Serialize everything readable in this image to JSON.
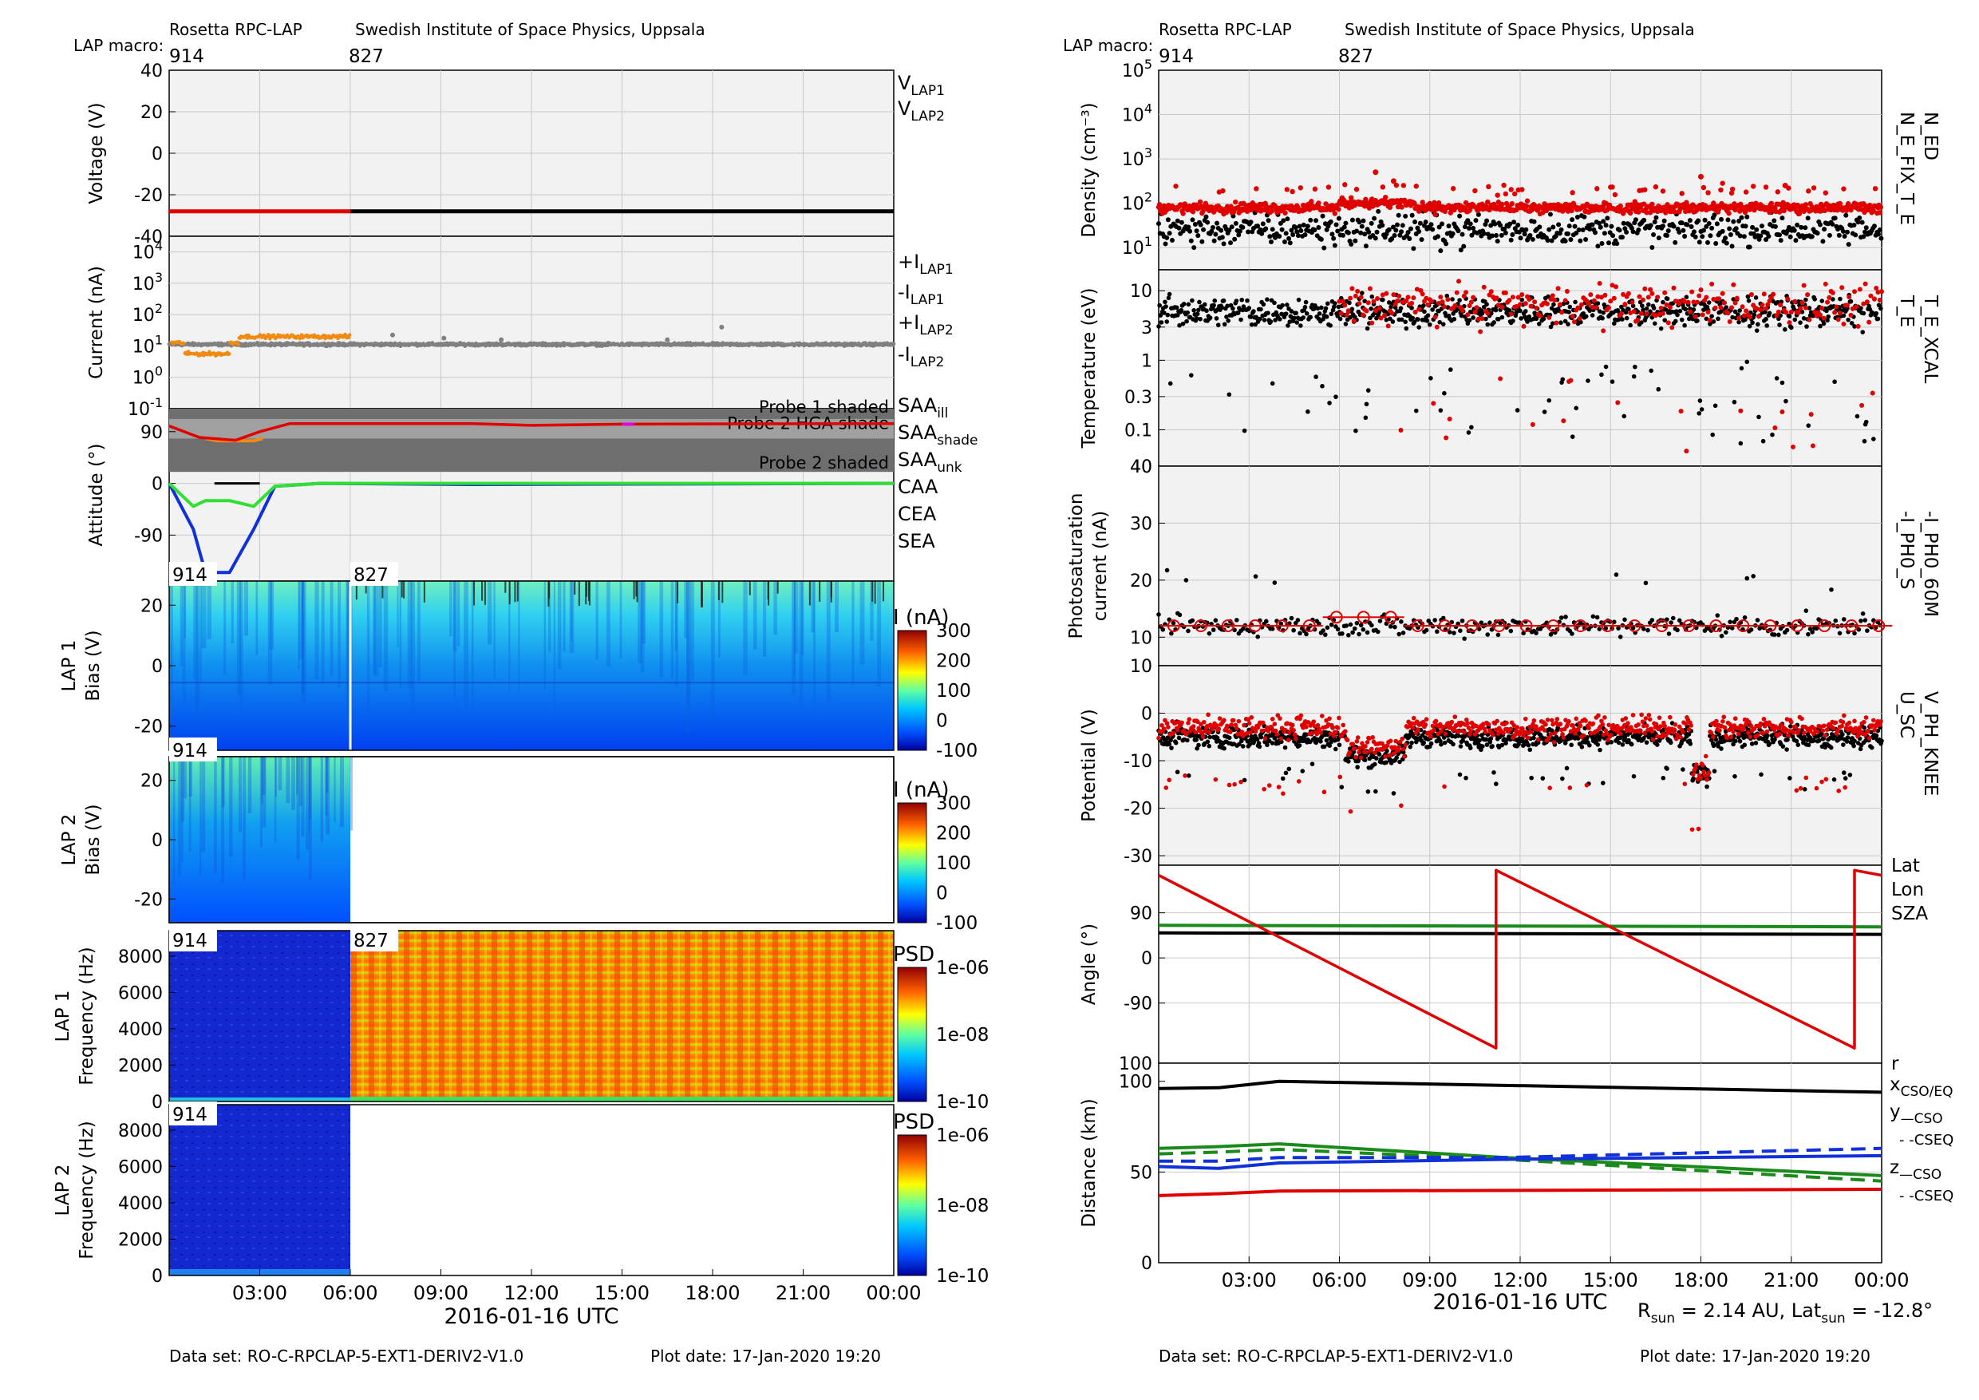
{
  "header_left": {
    "instrument": "Rosetta RPC-LAP",
    "institute": "Swedish Institute of Space Physics, Uppsala",
    "macro_label": "LAP macro:",
    "macro1": "914",
    "macro2": "827"
  },
  "header_right": {
    "instrument": "Rosetta RPC-LAP",
    "institute": "Swedish Institute of Space Physics, Uppsala",
    "macro_label": "LAP macro:",
    "macro1": "914",
    "macro2": "827"
  },
  "footer_left": {
    "dataset": "Data set: RO-C-RPCLAP-5-EXT1-DERIV2-V1.0",
    "plotdate": "Plot date: 17-Jan-2020 19:20"
  },
  "footer_right": {
    "dataset": "Data set: RO-C-RPCLAP-5-EXT1-DERIV2-V1.0",
    "plotdate": "Plot date: 17-Jan-2020 19:20",
    "rsun_note": "R_sun = 2.14 AU, Lat_sun = -12.8°"
  },
  "xaxis": {
    "label": "2016-01-16 UTC",
    "ticks": [
      "03:00",
      "06:00",
      "09:00",
      "12:00",
      "15:00",
      "18:00",
      "21:00",
      "00:00"
    ],
    "range_hours": [
      0,
      24
    ]
  },
  "colors": {
    "lap1": "#000000",
    "lap2": "#e00000",
    "gray": "#808080",
    "orange": "#f08a10",
    "green": "#1a8a1a",
    "blue": "#1030d8",
    "panel_bg": "#f2f2f2"
  },
  "chart_data": [
    {
      "type": "line",
      "panel": "voltage",
      "ylabel": "Voltage (V)",
      "yticks": [
        "40",
        "20",
        "0",
        "-20",
        "-40"
      ],
      "ylim": [
        -40,
        40
      ],
      "series": [
        {
          "name": "V_LAP1",
          "x": [
            6,
            24
          ],
          "y": [
            -28,
            -28
          ]
        },
        {
          "name": "V_LAP2",
          "x": [
            0,
            6
          ],
          "y": [
            -28,
            -28
          ]
        }
      ]
    },
    {
      "type": "scatter",
      "panel": "current",
      "ylabel": "Current (nA)",
      "yscale": "log",
      "yticks": [
        "10^4",
        "10^3",
        "10^2",
        "10^1",
        "10^0",
        "10^-1"
      ],
      "ylim": [
        0.1,
        30000
      ],
      "series": [
        {
          "name": "+I_LAP1",
          "approx": 12
        },
        {
          "name": "-I_LAP1",
          "approx": 11
        },
        {
          "name": "+I_LAP2",
          "approx": 14
        },
        {
          "name": "-I_LAP2",
          "approx": 6
        }
      ]
    },
    {
      "type": "line",
      "panel": "attitude",
      "ylabel": "Attitude (°)",
      "yticks": [
        "90",
        "0",
        "-90"
      ],
      "annotations": [
        "Probe 1 shaded",
        "Probe 2 HGA shade",
        "Probe 2 shaded"
      ],
      "legend": [
        "SAA_ill",
        "SAA_shade",
        "SAA_unk",
        "CAA",
        "CEA",
        "SEA"
      ],
      "series": [
        {
          "name": "SAA_ill",
          "x": [
            0,
            1,
            2.2,
            3,
            4,
            6,
            10,
            12,
            15,
            24
          ],
          "y": [
            100,
            80,
            75,
            90,
            104,
            104,
            104,
            101,
            103,
            104
          ]
        },
        {
          "name": "CAA",
          "x": [
            0,
            0.8,
            1.2,
            2,
            2.8,
            3.5,
            5,
            10,
            24
          ],
          "y": [
            0,
            -80,
            -155,
            -155,
            -80,
            -5,
            0,
            -2,
            0
          ]
        },
        {
          "name": "CEA",
          "x": [
            0,
            0.8,
            1.2,
            2,
            2.8,
            3.5,
            5,
            24
          ],
          "y": [
            0,
            -40,
            -30,
            -30,
            -40,
            -5,
            0,
            0
          ]
        }
      ]
    },
    {
      "type": "heatmap",
      "panel": "lap1_sweep",
      "ylabel": "LAP 1\nBias (V)",
      "yticks": [
        "20",
        "0",
        "-20"
      ],
      "colorbar_label": "I (nA)",
      "colorbar_ticks": [
        "300",
        "200",
        "100",
        "0",
        "-100"
      ],
      "macro_labels": [
        "914",
        "827"
      ]
    },
    {
      "type": "heatmap",
      "panel": "lap2_sweep",
      "ylabel": "LAP 2\nBias (V)",
      "yticks": [
        "20",
        "0",
        "-20"
      ],
      "colorbar_label": "I (nA)",
      "colorbar_ticks": [
        "300",
        "200",
        "100",
        "0",
        "-100"
      ],
      "macro_labels": [
        "914"
      ]
    },
    {
      "type": "heatmap",
      "panel": "lap1_psd",
      "ylabel": "LAP 1\nFrequency (Hz)",
      "yticks": [
        "8000",
        "6000",
        "4000",
        "2000",
        "0"
      ],
      "colorbar_label": "PSD",
      "colorbar_ticks": [
        "1e-06",
        "1e-08",
        "1e-10"
      ],
      "macro_labels": [
        "914",
        "827"
      ]
    },
    {
      "type": "heatmap",
      "panel": "lap2_psd",
      "ylabel": "LAP 2\nFrequency (Hz)",
      "yticks": [
        "8000",
        "6000",
        "4000",
        "2000",
        "0"
      ],
      "colorbar_label": "PSD",
      "colorbar_ticks": [
        "1e-06",
        "1e-08",
        "1e-10"
      ],
      "macro_labels": [
        "914"
      ]
    },
    {
      "type": "scatter",
      "panel": "density",
      "ylabel": "Density (cm^-3)",
      "yscale": "log",
      "yticks": [
        "10^5",
        "10^4",
        "10^3",
        "10^2",
        "10^1"
      ],
      "legend": [
        "N_ED",
        "N_E_FIX_T_E"
      ],
      "series": [
        {
          "name": "N_ED",
          "approx": 80
        },
        {
          "name": "N_E_FIX_T_E",
          "approx": 30
        }
      ]
    },
    {
      "type": "scatter",
      "panel": "temperature",
      "ylabel": "Temperature (eV)",
      "yscale": "log",
      "yticks": [
        "10",
        "3",
        "1",
        "0.3",
        "0.1"
      ],
      "legend": [
        "T_E_XCAL",
        "T_E"
      ],
      "series": [
        {
          "name": "T_E_XCAL",
          "approx": 6
        },
        {
          "name": "T_E",
          "approx": 5
        }
      ]
    },
    {
      "type": "scatter",
      "panel": "photosaturation",
      "ylabel": "Photosaturation\ncurrent (nA)",
      "yticks": [
        "40",
        "30",
        "20",
        "10"
      ],
      "ylim": [
        5,
        40
      ],
      "legend": [
        "-I_PH0_60M",
        "-I_PH0_S"
      ],
      "series": [
        {
          "name": "-I_PH0_S",
          "approx": 12
        },
        {
          "name": "-I_PH0_60M",
          "approx": 12
        }
      ]
    },
    {
      "type": "scatter",
      "panel": "potential",
      "ylabel": "Potential (V)",
      "yticks": [
        "10",
        "0",
        "-10",
        "-20",
        "-30"
      ],
      "ylim": [
        -32,
        10
      ],
      "legend": [
        "V_PH_KNEE",
        "U_SC"
      ],
      "series": [
        {
          "name": "V_PH_KNEE",
          "approx": -3
        },
        {
          "name": "U_SC",
          "approx": -5
        }
      ]
    },
    {
      "type": "line",
      "panel": "angle",
      "ylabel": "Angle (°)",
      "yticks": [
        "90",
        "0",
        "-90",
        "100"
      ],
      "ylim": [
        -210,
        185
      ],
      "legend": [
        "Lat",
        "Lon",
        "SZA"
      ],
      "series": [
        {
          "name": "Lat",
          "x": [
            0,
            24
          ],
          "y": [
            50,
            47
          ]
        },
        {
          "name": "Lon",
          "x": [
            0,
            11.2,
            11.2,
            23.1,
            23.1,
            24
          ],
          "y": [
            165,
            -180,
            175,
            -180,
            175,
            165
          ]
        },
        {
          "name": "SZA",
          "x": [
            0,
            24
          ],
          "y": [
            65,
            62
          ]
        }
      ]
    },
    {
      "type": "line",
      "panel": "distance",
      "ylabel": "Distance (km)",
      "yticks": [
        "100",
        "50",
        "0"
      ],
      "ylim": [
        0,
        110
      ],
      "legend": [
        "r",
        "x_CSO/EQ",
        "y_CSO",
        "y_CSEQ",
        "z_CSO",
        "z_CSEQ"
      ],
      "series": [
        {
          "name": "r",
          "x": [
            0,
            2,
            4,
            24
          ],
          "y": [
            96,
            96.5,
            100,
            94
          ]
        },
        {
          "name": "x_CSO/EQ",
          "x": [
            0,
            2,
            4,
            24
          ],
          "y": [
            37,
            38,
            39.5,
            40.5
          ]
        },
        {
          "name": "y_CSO",
          "x": [
            0,
            2,
            4,
            11.5,
            24
          ],
          "y": [
            63,
            64,
            65.5,
            58,
            48
          ]
        },
        {
          "name": "y_CSEQ",
          "x": [
            0,
            2,
            4,
            11.5,
            24
          ],
          "y": [
            60,
            61,
            62.5,
            57,
            45
          ]
        },
        {
          "name": "z_CSO",
          "x": [
            0,
            2,
            4,
            11.5,
            24
          ],
          "y": [
            53,
            52,
            55,
            57,
            59
          ]
        },
        {
          "name": "z_CSEQ",
          "x": [
            0,
            2,
            4,
            11.5,
            24
          ],
          "y": [
            56,
            56,
            58,
            58,
            63
          ]
        }
      ]
    }
  ]
}
